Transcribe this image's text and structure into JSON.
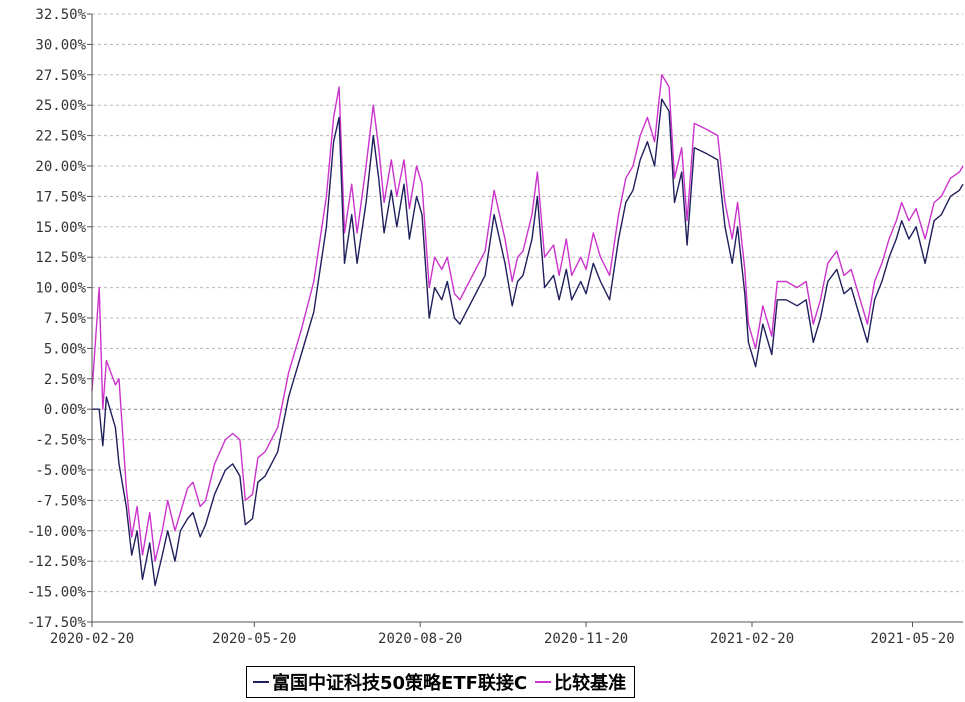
{
  "chart_data": {
    "type": "line",
    "x_ticks": [
      "2020-02-20",
      "2020-05-20",
      "2020-08-20",
      "2020-11-20",
      "2021-02-20",
      "2021-05-20"
    ],
    "y_ticks": [
      "32.50%",
      "30.00%",
      "27.50%",
      "25.00%",
      "22.50%",
      "20.00%",
      "17.50%",
      "15.00%",
      "12.50%",
      "10.00%",
      "7.50%",
      "5.00%",
      "2.50%",
      "0.00%",
      "-2.50%",
      "-5.00%",
      "-7.50%",
      "-10.00%",
      "-12.50%",
      "-15.00%",
      "-17.50%"
    ],
    "ylim": [
      -17.5,
      32.5
    ],
    "xlim": [
      "2020-02-20",
      "2021-06-17"
    ],
    "grid": "horizontal-dashed",
    "legend_position": "bottom-center",
    "series": [
      {
        "name": "富国中证科技50策略ETF联接C",
        "color": "#1f1f5c",
        "points": [
          [
            "2020-02-20",
            0.0
          ],
          [
            "2020-02-24",
            0.0
          ],
          [
            "2020-02-26",
            -3.0
          ],
          [
            "2020-02-28",
            1.0
          ],
          [
            "2020-03-04",
            -1.5
          ],
          [
            "2020-03-06",
            -4.5
          ],
          [
            "2020-03-10",
            -8.0
          ],
          [
            "2020-03-13",
            -12.0
          ],
          [
            "2020-03-16",
            -10.0
          ],
          [
            "2020-03-19",
            -14.0
          ],
          [
            "2020-03-23",
            -11.0
          ],
          [
            "2020-03-26",
            -14.5
          ],
          [
            "2020-03-30",
            -12.0
          ],
          [
            "2020-04-02",
            -10.0
          ],
          [
            "2020-04-06",
            -12.5
          ],
          [
            "2020-04-09",
            -10.0
          ],
          [
            "2020-04-13",
            -9.0
          ],
          [
            "2020-04-16",
            -8.5
          ],
          [
            "2020-04-20",
            -10.5
          ],
          [
            "2020-04-23",
            -9.5
          ],
          [
            "2020-04-28",
            -7.0
          ],
          [
            "2020-05-04",
            -5.0
          ],
          [
            "2020-05-08",
            -4.5
          ],
          [
            "2020-05-12",
            -5.5
          ],
          [
            "2020-05-15",
            -9.5
          ],
          [
            "2020-05-19",
            -9.0
          ],
          [
            "2020-05-22",
            -6.0
          ],
          [
            "2020-05-26",
            -5.5
          ],
          [
            "2020-06-02",
            -3.5
          ],
          [
            "2020-06-08",
            1.0
          ],
          [
            "2020-06-15",
            4.5
          ],
          [
            "2020-06-22",
            8.0
          ],
          [
            "2020-06-29",
            15.0
          ],
          [
            "2020-07-03",
            22.0
          ],
          [
            "2020-07-06",
            24.0
          ],
          [
            "2020-07-09",
            12.0
          ],
          [
            "2020-07-13",
            16.0
          ],
          [
            "2020-07-16",
            12.0
          ],
          [
            "2020-07-21",
            17.0
          ],
          [
            "2020-07-25",
            22.5
          ],
          [
            "2020-07-28",
            19.0
          ],
          [
            "2020-07-31",
            14.5
          ],
          [
            "2020-08-04",
            18.0
          ],
          [
            "2020-08-07",
            15.0
          ],
          [
            "2020-08-11",
            18.5
          ],
          [
            "2020-08-14",
            14.0
          ],
          [
            "2020-08-18",
            17.5
          ],
          [
            "2020-08-21",
            16.0
          ],
          [
            "2020-08-25",
            7.5
          ],
          [
            "2020-08-28",
            10.0
          ],
          [
            "2020-09-01",
            9.0
          ],
          [
            "2020-09-04",
            10.5
          ],
          [
            "2020-09-08",
            7.5
          ],
          [
            "2020-09-11",
            7.0
          ],
          [
            "2020-09-18",
            9.0
          ],
          [
            "2020-09-25",
            11.0
          ],
          [
            "2020-09-30",
            16.0
          ],
          [
            "2020-10-06",
            12.0
          ],
          [
            "2020-10-10",
            8.5
          ],
          [
            "2020-10-13",
            10.5
          ],
          [
            "2020-10-16",
            11.0
          ],
          [
            "2020-10-21",
            14.0
          ],
          [
            "2020-10-24",
            17.5
          ],
          [
            "2020-10-28",
            10.0
          ],
          [
            "2020-11-02",
            11.0
          ],
          [
            "2020-11-05",
            9.0
          ],
          [
            "2020-11-09",
            11.5
          ],
          [
            "2020-11-12",
            9.0
          ],
          [
            "2020-11-17",
            10.5
          ],
          [
            "2020-11-20",
            9.5
          ],
          [
            "2020-11-24",
            12.0
          ],
          [
            "2020-11-28",
            10.5
          ],
          [
            "2020-12-03",
            9.0
          ],
          [
            "2020-12-08",
            14.0
          ],
          [
            "2020-12-12",
            17.0
          ],
          [
            "2020-12-16",
            18.0
          ],
          [
            "2020-12-20",
            20.5
          ],
          [
            "2020-12-24",
            22.0
          ],
          [
            "2020-12-28",
            20.0
          ],
          [
            "2021-01-01",
            25.5
          ],
          [
            "2021-01-05",
            24.5
          ],
          [
            "2021-01-08",
            17.0
          ],
          [
            "2021-01-12",
            19.5
          ],
          [
            "2021-01-15",
            13.5
          ],
          [
            "2021-01-19",
            21.5
          ],
          [
            "2021-01-26",
            21.0
          ],
          [
            "2021-02-01",
            20.5
          ],
          [
            "2021-02-05",
            15.0
          ],
          [
            "2021-02-09",
            12.0
          ],
          [
            "2021-02-12",
            15.0
          ],
          [
            "2021-02-16",
            9.5
          ],
          [
            "2021-02-18",
            5.5
          ],
          [
            "2021-02-22",
            3.5
          ],
          [
            "2021-02-26",
            7.0
          ],
          [
            "2021-03-03",
            4.5
          ],
          [
            "2021-03-06",
            9.0
          ],
          [
            "2021-03-11",
            9.0
          ],
          [
            "2021-03-17",
            8.5
          ],
          [
            "2021-03-22",
            9.0
          ],
          [
            "2021-03-26",
            5.5
          ],
          [
            "2021-03-30",
            7.5
          ],
          [
            "2021-04-03",
            10.5
          ],
          [
            "2021-04-08",
            11.5
          ],
          [
            "2021-04-12",
            9.5
          ],
          [
            "2021-04-16",
            10.0
          ],
          [
            "2021-04-21",
            7.5
          ],
          [
            "2021-04-25",
            5.5
          ],
          [
            "2021-04-29",
            9.0
          ],
          [
            "2021-05-03",
            10.5
          ],
          [
            "2021-05-07",
            12.5
          ],
          [
            "2021-05-11",
            14.0
          ],
          [
            "2021-05-14",
            15.5
          ],
          [
            "2021-05-18",
            14.0
          ],
          [
            "2021-05-22",
            15.0
          ],
          [
            "2021-05-27",
            12.0
          ],
          [
            "2021-06-01",
            15.5
          ],
          [
            "2021-06-05",
            16.0
          ],
          [
            "2021-06-10",
            17.5
          ],
          [
            "2021-06-15",
            18.0
          ],
          [
            "2021-06-17",
            18.5
          ]
        ]
      },
      {
        "name": "比较基准",
        "color": "#cc33cc",
        "points": [
          [
            "2020-02-20",
            1.5
          ],
          [
            "2020-02-24",
            10.0
          ],
          [
            "2020-02-26",
            0.0
          ],
          [
            "2020-02-28",
            4.0
          ],
          [
            "2020-03-04",
            2.0
          ],
          [
            "2020-03-06",
            2.5
          ],
          [
            "2020-03-10",
            -6.5
          ],
          [
            "2020-03-13",
            -10.5
          ],
          [
            "2020-03-16",
            -8.0
          ],
          [
            "2020-03-19",
            -12.0
          ],
          [
            "2020-03-23",
            -8.5
          ],
          [
            "2020-03-26",
            -12.5
          ],
          [
            "2020-03-30",
            -10.0
          ],
          [
            "2020-04-02",
            -7.5
          ],
          [
            "2020-04-06",
            -10.0
          ],
          [
            "2020-04-09",
            -8.5
          ],
          [
            "2020-04-13",
            -6.5
          ],
          [
            "2020-04-16",
            -6.0
          ],
          [
            "2020-04-20",
            -8.0
          ],
          [
            "2020-04-23",
            -7.5
          ],
          [
            "2020-04-28",
            -4.5
          ],
          [
            "2020-05-04",
            -2.5
          ],
          [
            "2020-05-08",
            -2.0
          ],
          [
            "2020-05-12",
            -2.5
          ],
          [
            "2020-05-15",
            -7.5
          ],
          [
            "2020-05-19",
            -7.0
          ],
          [
            "2020-05-22",
            -4.0
          ],
          [
            "2020-05-26",
            -3.5
          ],
          [
            "2020-06-02",
            -1.5
          ],
          [
            "2020-06-08",
            3.0
          ],
          [
            "2020-06-15",
            6.5
          ],
          [
            "2020-06-22",
            10.5
          ],
          [
            "2020-06-29",
            17.5
          ],
          [
            "2020-07-03",
            24.0
          ],
          [
            "2020-07-06",
            26.5
          ],
          [
            "2020-07-09",
            14.5
          ],
          [
            "2020-07-13",
            18.5
          ],
          [
            "2020-07-16",
            14.5
          ],
          [
            "2020-07-21",
            20.0
          ],
          [
            "2020-07-25",
            25.0
          ],
          [
            "2020-07-28",
            21.5
          ],
          [
            "2020-07-31",
            17.0
          ],
          [
            "2020-08-04",
            20.5
          ],
          [
            "2020-08-07",
            17.5
          ],
          [
            "2020-08-11",
            20.5
          ],
          [
            "2020-08-14",
            16.5
          ],
          [
            "2020-08-18",
            20.0
          ],
          [
            "2020-08-21",
            18.5
          ],
          [
            "2020-08-25",
            10.0
          ],
          [
            "2020-08-28",
            12.5
          ],
          [
            "2020-09-01",
            11.5
          ],
          [
            "2020-09-04",
            12.5
          ],
          [
            "2020-09-08",
            9.5
          ],
          [
            "2020-09-11",
            9.0
          ],
          [
            "2020-09-18",
            11.0
          ],
          [
            "2020-09-25",
            13.0
          ],
          [
            "2020-09-30",
            18.0
          ],
          [
            "2020-10-06",
            14.0
          ],
          [
            "2020-10-10",
            10.5
          ],
          [
            "2020-10-13",
            12.5
          ],
          [
            "2020-10-16",
            13.0
          ],
          [
            "2020-10-21",
            16.0
          ],
          [
            "2020-10-24",
            19.5
          ],
          [
            "2020-10-28",
            12.5
          ],
          [
            "2020-11-02",
            13.5
          ],
          [
            "2020-11-05",
            11.0
          ],
          [
            "2020-11-09",
            14.0
          ],
          [
            "2020-11-12",
            11.0
          ],
          [
            "2020-11-17",
            12.5
          ],
          [
            "2020-11-20",
            11.5
          ],
          [
            "2020-11-24",
            14.5
          ],
          [
            "2020-11-28",
            12.5
          ],
          [
            "2020-12-03",
            11.0
          ],
          [
            "2020-12-08",
            16.0
          ],
          [
            "2020-12-12",
            19.0
          ],
          [
            "2020-12-16",
            20.0
          ],
          [
            "2020-12-20",
            22.5
          ],
          [
            "2020-12-24",
            24.0
          ],
          [
            "2020-12-28",
            22.0
          ],
          [
            "2021-01-01",
            27.5
          ],
          [
            "2021-01-05",
            26.5
          ],
          [
            "2021-01-08",
            19.0
          ],
          [
            "2021-01-12",
            21.5
          ],
          [
            "2021-01-15",
            15.5
          ],
          [
            "2021-01-19",
            23.5
          ],
          [
            "2021-01-26",
            23.0
          ],
          [
            "2021-02-01",
            22.5
          ],
          [
            "2021-02-05",
            17.0
          ],
          [
            "2021-02-09",
            14.0
          ],
          [
            "2021-02-12",
            17.0
          ],
          [
            "2021-02-16",
            11.5
          ],
          [
            "2021-02-18",
            7.0
          ],
          [
            "2021-02-22",
            5.0
          ],
          [
            "2021-02-26",
            8.5
          ],
          [
            "2021-03-03",
            6.0
          ],
          [
            "2021-03-06",
            10.5
          ],
          [
            "2021-03-11",
            10.5
          ],
          [
            "2021-03-17",
            10.0
          ],
          [
            "2021-03-22",
            10.5
          ],
          [
            "2021-03-26",
            7.0
          ],
          [
            "2021-03-30",
            9.0
          ],
          [
            "2021-04-03",
            12.0
          ],
          [
            "2021-04-08",
            13.0
          ],
          [
            "2021-04-12",
            11.0
          ],
          [
            "2021-04-16",
            11.5
          ],
          [
            "2021-04-21",
            9.0
          ],
          [
            "2021-04-25",
            7.0
          ],
          [
            "2021-04-29",
            10.5
          ],
          [
            "2021-05-03",
            12.0
          ],
          [
            "2021-05-07",
            14.0
          ],
          [
            "2021-05-11",
            15.5
          ],
          [
            "2021-05-14",
            17.0
          ],
          [
            "2021-05-18",
            15.5
          ],
          [
            "2021-05-22",
            16.5
          ],
          [
            "2021-05-27",
            14.0
          ],
          [
            "2021-06-01",
            17.0
          ],
          [
            "2021-06-05",
            17.5
          ],
          [
            "2021-06-10",
            19.0
          ],
          [
            "2021-06-15",
            19.5
          ],
          [
            "2021-06-17",
            20.0
          ]
        ]
      }
    ]
  }
}
